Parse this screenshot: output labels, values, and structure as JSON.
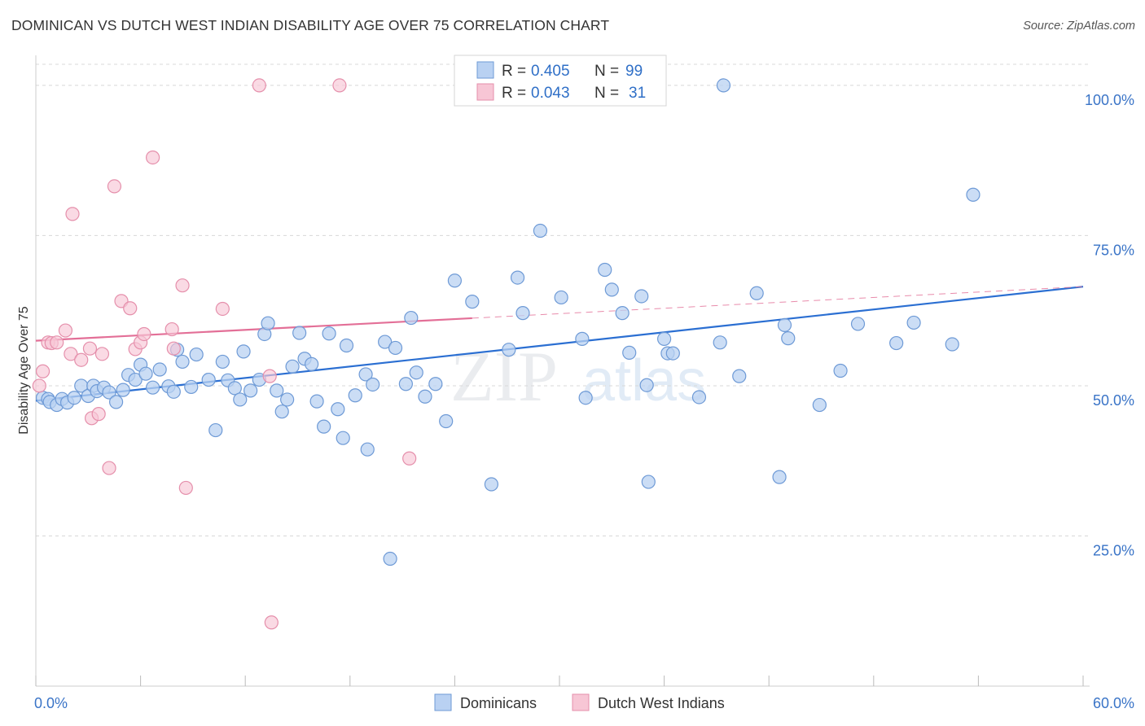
{
  "title": "DOMINICAN VS DUTCH WEST INDIAN DISABILITY AGE OVER 75 CORRELATION CHART",
  "source": "Source: ZipAtlas.com",
  "watermark": {
    "zip": "ZIP",
    "atlas": "atlas"
  },
  "colors": {
    "blue_fill": "#b9d1f2",
    "blue_stroke": "#6e9ad6",
    "blue_line": "#2b6fd2",
    "pink_fill": "#f7c6d5",
    "pink_stroke": "#e58fab",
    "pink_line": "#e36f97",
    "grid": "#d8d8d8",
    "tick_label": "#3a74c7"
  },
  "legend": {
    "rows": [
      {
        "r_label": "R =",
        "r_value": "0.405",
        "n_label": "N =",
        "n_value": "99"
      },
      {
        "r_label": "R =",
        "r_value": "0.043",
        "n_label": "N =",
        "n_value": "31"
      }
    ]
  },
  "chart_data": {
    "type": "scatter",
    "title": "DOMINICAN VS DUTCH WEST INDIAN DISABILITY AGE OVER 75 CORRELATION CHART",
    "xlabel": "",
    "ylabel": "Disability Age Over 75",
    "xlim": [
      0,
      60
    ],
    "ylim": [
      0,
      105
    ],
    "x_tick_labels": [
      "0.0%",
      "60.0%"
    ],
    "y_ticks": [
      25,
      50,
      75,
      100
    ],
    "y_tick_labels": [
      "25.0%",
      "50.0%",
      "75.0%",
      "100.0%"
    ],
    "grid": true,
    "series": [
      {
        "name": "Dominicans",
        "color": "#6e9ad6",
        "trend": {
          "x0": 0,
          "y0": 47.5,
          "x1": 60,
          "y1": 66.5,
          "dashed_from": null
        },
        "points": [
          [
            0.4,
            48.0
          ],
          [
            0.7,
            47.8
          ],
          [
            0.8,
            47.3
          ],
          [
            1.2,
            46.8
          ],
          [
            1.5,
            47.8
          ],
          [
            1.8,
            47.2
          ],
          [
            2.2,
            48.0
          ],
          [
            2.6,
            50.0
          ],
          [
            3.0,
            48.3
          ],
          [
            3.3,
            50.0
          ],
          [
            3.5,
            49.1
          ],
          [
            3.9,
            49.7
          ],
          [
            4.2,
            48.9
          ],
          [
            4.6,
            47.3
          ],
          [
            5.0,
            49.3
          ],
          [
            5.3,
            51.8
          ],
          [
            5.7,
            51.0
          ],
          [
            6.0,
            53.5
          ],
          [
            6.3,
            52.0
          ],
          [
            6.7,
            49.7
          ],
          [
            7.1,
            52.7
          ],
          [
            7.6,
            49.9
          ],
          [
            7.9,
            49.0
          ],
          [
            8.1,
            56.0
          ],
          [
            8.4,
            54.0
          ],
          [
            8.9,
            49.8
          ],
          [
            9.2,
            55.2
          ],
          [
            9.9,
            51.0
          ],
          [
            10.3,
            42.6
          ],
          [
            10.7,
            54.0
          ],
          [
            11.0,
            50.9
          ],
          [
            11.4,
            49.6
          ],
          [
            11.7,
            47.7
          ],
          [
            11.9,
            55.7
          ],
          [
            12.3,
            49.2
          ],
          [
            12.8,
            51.0
          ],
          [
            13.1,
            58.6
          ],
          [
            13.3,
            60.4
          ],
          [
            13.8,
            49.2
          ],
          [
            14.1,
            45.7
          ],
          [
            14.4,
            47.7
          ],
          [
            14.7,
            53.2
          ],
          [
            15.1,
            58.8
          ],
          [
            15.4,
            54.5
          ],
          [
            15.8,
            53.6
          ],
          [
            16.1,
            47.4
          ],
          [
            16.5,
            43.2
          ],
          [
            16.8,
            58.7
          ],
          [
            17.3,
            46.1
          ],
          [
            17.8,
            56.7
          ],
          [
            17.6,
            41.3
          ],
          [
            18.3,
            48.4
          ],
          [
            18.9,
            51.9
          ],
          [
            19.3,
            50.2
          ],
          [
            19.0,
            39.4
          ],
          [
            20.0,
            57.3
          ],
          [
            20.3,
            21.2
          ],
          [
            20.6,
            56.3
          ],
          [
            21.2,
            50.3
          ],
          [
            21.5,
            61.3
          ],
          [
            21.8,
            52.2
          ],
          [
            22.3,
            48.2
          ],
          [
            22.9,
            50.3
          ],
          [
            23.5,
            44.1
          ],
          [
            24.0,
            67.5
          ],
          [
            25.0,
            64.0
          ],
          [
            26.1,
            33.6
          ],
          [
            27.1,
            56.0
          ],
          [
            27.6,
            68.0
          ],
          [
            27.9,
            62.1
          ],
          [
            28.9,
            75.8
          ],
          [
            30.1,
            64.7
          ],
          [
            31.3,
            57.8
          ],
          [
            31.5,
            48.0
          ],
          [
            32.6,
            69.3
          ],
          [
            33.0,
            66.0
          ],
          [
            33.6,
            62.1
          ],
          [
            34.0,
            55.5
          ],
          [
            34.7,
            64.9
          ],
          [
            35.0,
            50.1
          ],
          [
            35.1,
            34.0
          ],
          [
            36.0,
            57.8
          ],
          [
            36.2,
            55.4
          ],
          [
            36.5,
            55.4
          ],
          [
            38.0,
            48.1
          ],
          [
            39.2,
            57.2
          ],
          [
            39.4,
            100.0
          ],
          [
            40.3,
            51.6
          ],
          [
            41.3,
            65.4
          ],
          [
            42.6,
            34.8
          ],
          [
            42.9,
            60.1
          ],
          [
            43.1,
            57.9
          ],
          [
            44.9,
            46.8
          ],
          [
            46.1,
            52.5
          ],
          [
            47.1,
            60.3
          ],
          [
            49.3,
            57.1
          ],
          [
            50.3,
            60.5
          ],
          [
            52.5,
            56.9
          ],
          [
            53.7,
            81.8
          ]
        ]
      },
      {
        "name": "Dutch West Indians",
        "color": "#e58fab",
        "trend": {
          "x0": 0,
          "y0": 57.5,
          "x1": 60,
          "y1": 66.5,
          "dashed_from": 25
        },
        "points": [
          [
            0.2,
            50.0
          ],
          [
            0.4,
            52.4
          ],
          [
            0.7,
            57.2
          ],
          [
            0.9,
            57.1
          ],
          [
            1.2,
            57.2
          ],
          [
            1.7,
            59.2
          ],
          [
            2.0,
            55.3
          ],
          [
            2.1,
            78.6
          ],
          [
            2.6,
            54.3
          ],
          [
            3.1,
            56.2
          ],
          [
            3.2,
            44.6
          ],
          [
            3.6,
            45.3
          ],
          [
            3.8,
            55.3
          ],
          [
            4.2,
            36.3
          ],
          [
            4.5,
            83.2
          ],
          [
            4.9,
            64.1
          ],
          [
            5.4,
            62.9
          ],
          [
            5.7,
            56.1
          ],
          [
            6.0,
            57.2
          ],
          [
            6.2,
            58.6
          ],
          [
            6.7,
            88.0
          ],
          [
            7.8,
            59.4
          ],
          [
            7.9,
            56.2
          ],
          [
            8.4,
            66.7
          ],
          [
            8.6,
            33.0
          ],
          [
            10.7,
            62.8
          ],
          [
            12.8,
            100.0
          ],
          [
            13.4,
            51.6
          ],
          [
            13.5,
            10.6
          ],
          [
            17.4,
            100.0
          ],
          [
            21.4,
            37.9
          ]
        ]
      }
    ]
  },
  "bottom_legend": {
    "items": [
      "Dominicans",
      "Dutch West Indians"
    ]
  }
}
